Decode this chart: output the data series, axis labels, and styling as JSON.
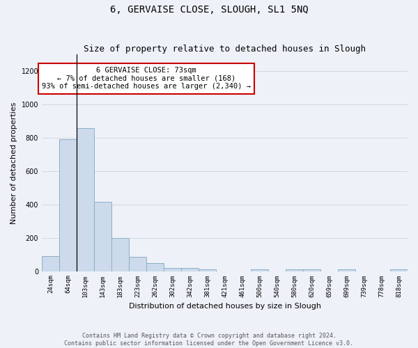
{
  "title": "6, GERVAISE CLOSE, SLOUGH, SL1 5NQ",
  "subtitle": "Size of property relative to detached houses in Slough",
  "xlabel": "Distribution of detached houses by size in Slough",
  "ylabel": "Number of detached properties",
  "bar_color": "#ccdaeb",
  "bar_edge_color": "#8aaec8",
  "background_color": "#eef2f8",
  "annotation_text": "6 GERVAISE CLOSE: 73sqm\n← 7% of detached houses are smaller (168)\n93% of semi-detached houses are larger (2,340) →",
  "annotation_box_color": "#ffffff",
  "annotation_border_color": "#cc0000",
  "bin_labels": [
    "24sqm",
    "64sqm",
    "103sqm",
    "143sqm",
    "183sqm",
    "223sqm",
    "262sqm",
    "302sqm",
    "342sqm",
    "381sqm",
    "421sqm",
    "461sqm",
    "500sqm",
    "540sqm",
    "580sqm",
    "620sqm",
    "659sqm",
    "699sqm",
    "739sqm",
    "778sqm",
    "818sqm"
  ],
  "bar_heights": [
    90,
    790,
    860,
    415,
    200,
    85,
    50,
    20,
    20,
    10,
    0,
    0,
    10,
    0,
    10,
    10,
    0,
    10,
    0,
    0,
    10
  ],
  "ylim": [
    0,
    1300
  ],
  "yticks": [
    0,
    200,
    400,
    600,
    800,
    1000,
    1200
  ],
  "footer": "Contains HM Land Registry data © Crown copyright and database right 2024.\nContains public sector information licensed under the Open Government Licence v3.0.",
  "grid_color": "#d0d8e0",
  "title_fontsize": 10,
  "subtitle_fontsize": 9,
  "ylabel_fontsize": 8,
  "xlabel_fontsize": 8,
  "tick_fontsize": 6.5,
  "annotation_fontsize": 7.5,
  "footer_fontsize": 6
}
